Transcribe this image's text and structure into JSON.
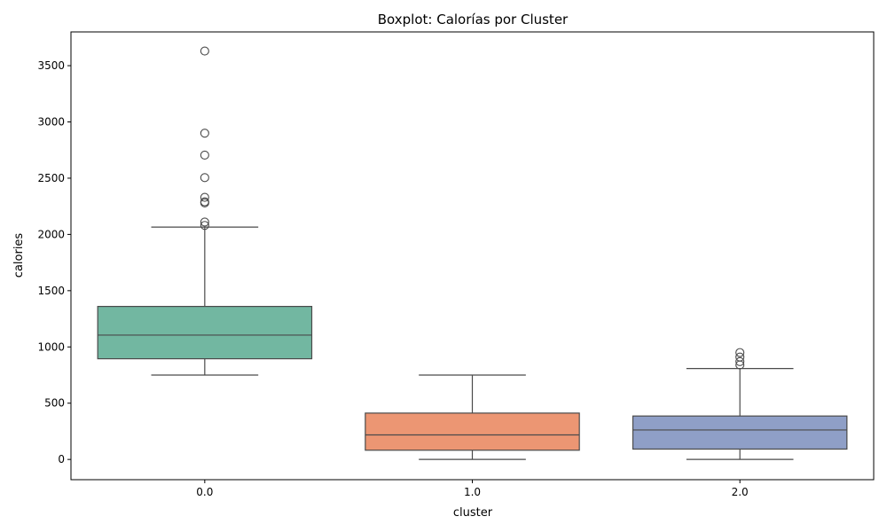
{
  "chart_data": {
    "type": "boxplot",
    "title": "Boxplot: Calorías por Cluster",
    "xlabel": "cluster",
    "ylabel": "calories",
    "ylim": [
      -180,
      3800
    ],
    "yticks": [
      0,
      500,
      1000,
      1500,
      2000,
      2500,
      3000,
      3500
    ],
    "grid": false,
    "categories": [
      "0.0",
      "1.0",
      "2.0"
    ],
    "colors": [
      "#72b7a1",
      "#ec9673",
      "#8f9fc7"
    ],
    "edge_color": "#4a4a4a",
    "boxes": [
      {
        "category": "0.0",
        "whisker_low": 750,
        "q1": 895,
        "median": 1105,
        "q3": 1360,
        "whisker_high": 2065,
        "outliers": [
          2080,
          2110,
          2280,
          2290,
          2330,
          2505,
          2705,
          2900,
          3630
        ]
      },
      {
        "category": "1.0",
        "whisker_low": 0,
        "q1": 82,
        "median": 218,
        "q3": 412,
        "whisker_high": 750,
        "outliers": []
      },
      {
        "category": "2.0",
        "whisker_low": 0,
        "q1": 92,
        "median": 262,
        "q3": 386,
        "whisker_high": 808,
        "outliers": [
          840,
          870,
          910,
          950
        ]
      }
    ]
  }
}
